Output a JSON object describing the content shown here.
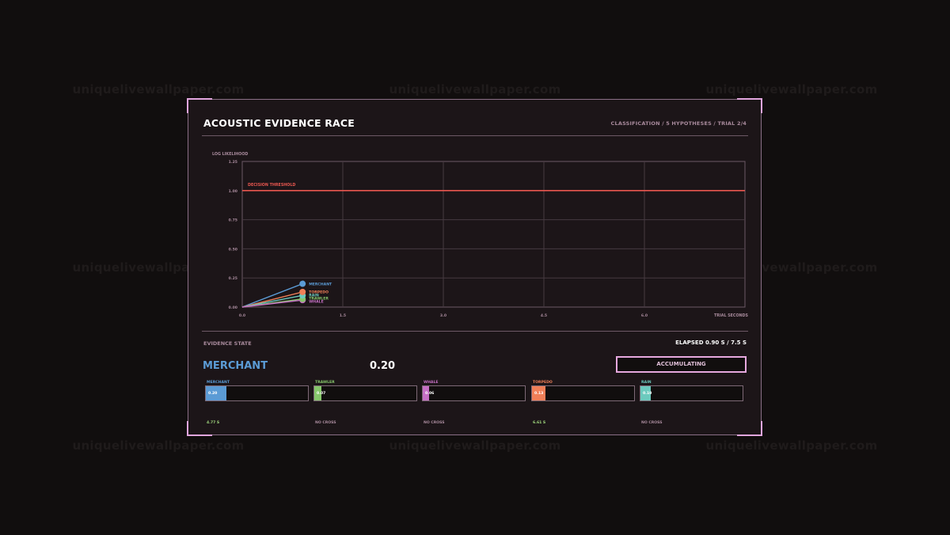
{
  "watermark": "uniquelivewallpaper.com",
  "panel": {
    "title": "ACOUSTIC EVIDENCE RACE",
    "subtitle": "CLASSIFICATION / 5 HYPOTHESES / TRIAL 2/4"
  },
  "chart_data": {
    "type": "line",
    "ylabel": "LOG LIKELIHOOD",
    "xlabel": "TRIAL SECONDS",
    "xlim": [
      0,
      7.5
    ],
    "ylim": [
      0,
      1.25
    ],
    "x_ticks": [
      "0.0",
      "1.5",
      "3.0",
      "4.5",
      "6.0"
    ],
    "y_ticks": [
      "0.00",
      "0.25",
      "0.50",
      "0.75",
      "1.00",
      "1.25"
    ],
    "grid": true,
    "threshold": {
      "label": "DECISION THRESHOLD",
      "value": 1.0,
      "color": "#e8564f"
    },
    "series": [
      {
        "name": "MERCHANT",
        "color": "#5b9bd5",
        "x": [
          0,
          0.9
        ],
        "y": [
          0,
          0.2
        ]
      },
      {
        "name": "TORPEDO",
        "color": "#f07f58",
        "x": [
          0,
          0.9
        ],
        "y": [
          0,
          0.13
        ]
      },
      {
        "name": "RAIN",
        "color": "#6ccabe",
        "x": [
          0,
          0.9
        ],
        "y": [
          0,
          0.1
        ]
      },
      {
        "name": "TRAWLER",
        "color": "#86c66b",
        "x": [
          0,
          0.9
        ],
        "y": [
          0,
          0.07
        ]
      },
      {
        "name": "WHALE",
        "color": "#c56fc4",
        "x": [
          0,
          0.9
        ],
        "y": [
          0,
          0.06
        ]
      }
    ]
  },
  "evidence": {
    "section_label": "EVIDENCE STATE",
    "elapsed": "ELAPSED 0.90 S /  7.5 S",
    "leader_name": "MERCHANT",
    "leader_value": "0.20",
    "status": "ACCUMULATING",
    "hypotheses": [
      {
        "name": "MERCHANT",
        "value": "0.20",
        "fraction": 0.2,
        "color": "#5b9bd5",
        "cross": "4.77 S",
        "cross_color": "#9fd77d"
      },
      {
        "name": "TRAWLER",
        "value": "0.07",
        "fraction": 0.07,
        "color": "#86c66b",
        "cross": "NO CROSS",
        "cross_color": "#a88a9c"
      },
      {
        "name": "WHALE",
        "value": "0.06",
        "fraction": 0.06,
        "color": "#c56fc4",
        "cross": "NO CROSS",
        "cross_color": "#a88a9c"
      },
      {
        "name": "TORPEDO",
        "value": "0.13",
        "fraction": 0.13,
        "color": "#f07f58",
        "cross": "6.61 S",
        "cross_color": "#9fd77d"
      },
      {
        "name": "RAIN",
        "value": "0.10",
        "fraction": 0.1,
        "color": "#6ccabe",
        "cross": "NO CROSS",
        "cross_color": "#a88a9c"
      }
    ]
  }
}
